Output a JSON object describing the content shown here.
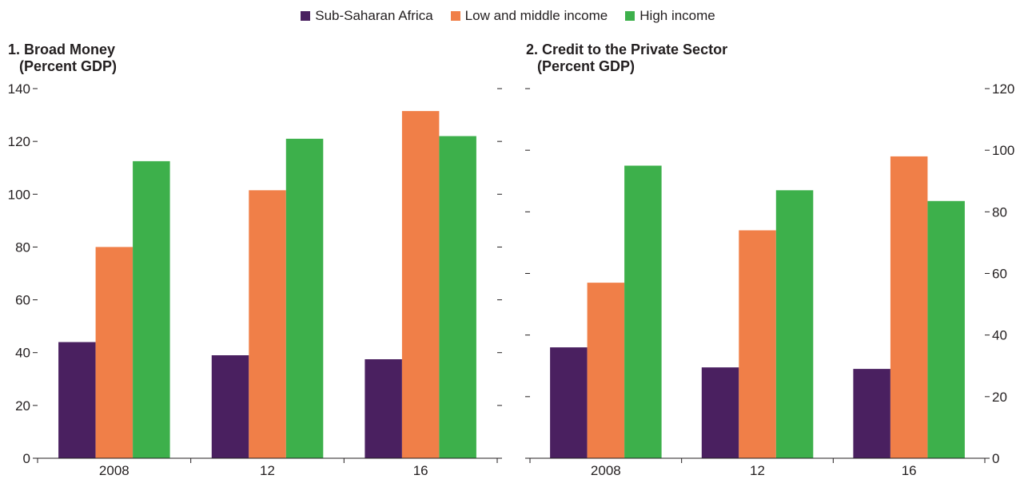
{
  "legend": [
    {
      "label": "Sub-Saharan Africa",
      "color": "#4a2060"
    },
    {
      "label": "Low and middle income",
      "color": "#f07f48"
    },
    {
      "label": "High income",
      "color": "#3db04b"
    }
  ],
  "chart_data": [
    {
      "type": "bar",
      "title": "1. Broad Money",
      "subtitle": "(Percent GDP)",
      "categories": [
        "2008",
        "12",
        "16"
      ],
      "series": [
        {
          "name": "Sub-Saharan Africa",
          "values": [
            44,
            39,
            37.5
          ]
        },
        {
          "name": "Low and middle income",
          "values": [
            80,
            101.5,
            131.5
          ]
        },
        {
          "name": "High income",
          "values": [
            112.5,
            121,
            122
          ]
        }
      ],
      "ylim": [
        0,
        140
      ],
      "yticks": [
        "0",
        "20",
        "40",
        "60",
        "80",
        "100",
        "120",
        "140"
      ],
      "ytick_values": [
        0,
        20,
        40,
        60,
        80,
        100,
        120,
        140
      ],
      "y_axis_side": "left",
      "grid": false
    },
    {
      "type": "bar",
      "title": "2. Credit to the Private Sector",
      "subtitle": "(Percent GDP)",
      "categories": [
        "2008",
        "12",
        "16"
      ],
      "series": [
        {
          "name": "Sub-Saharan Africa",
          "values": [
            36,
            29.5,
            29
          ]
        },
        {
          "name": "Low and middle income",
          "values": [
            57,
            74,
            98
          ]
        },
        {
          "name": "High income",
          "values": [
            95,
            87,
            83.5
          ]
        }
      ],
      "ylim": [
        0,
        120
      ],
      "yticks": [
        "0",
        "20",
        "40",
        "60",
        "80",
        "100",
        "120"
      ],
      "ytick_values": [
        0,
        20,
        40,
        60,
        80,
        100,
        120
      ],
      "y_axis_side": "right",
      "grid": false
    }
  ]
}
